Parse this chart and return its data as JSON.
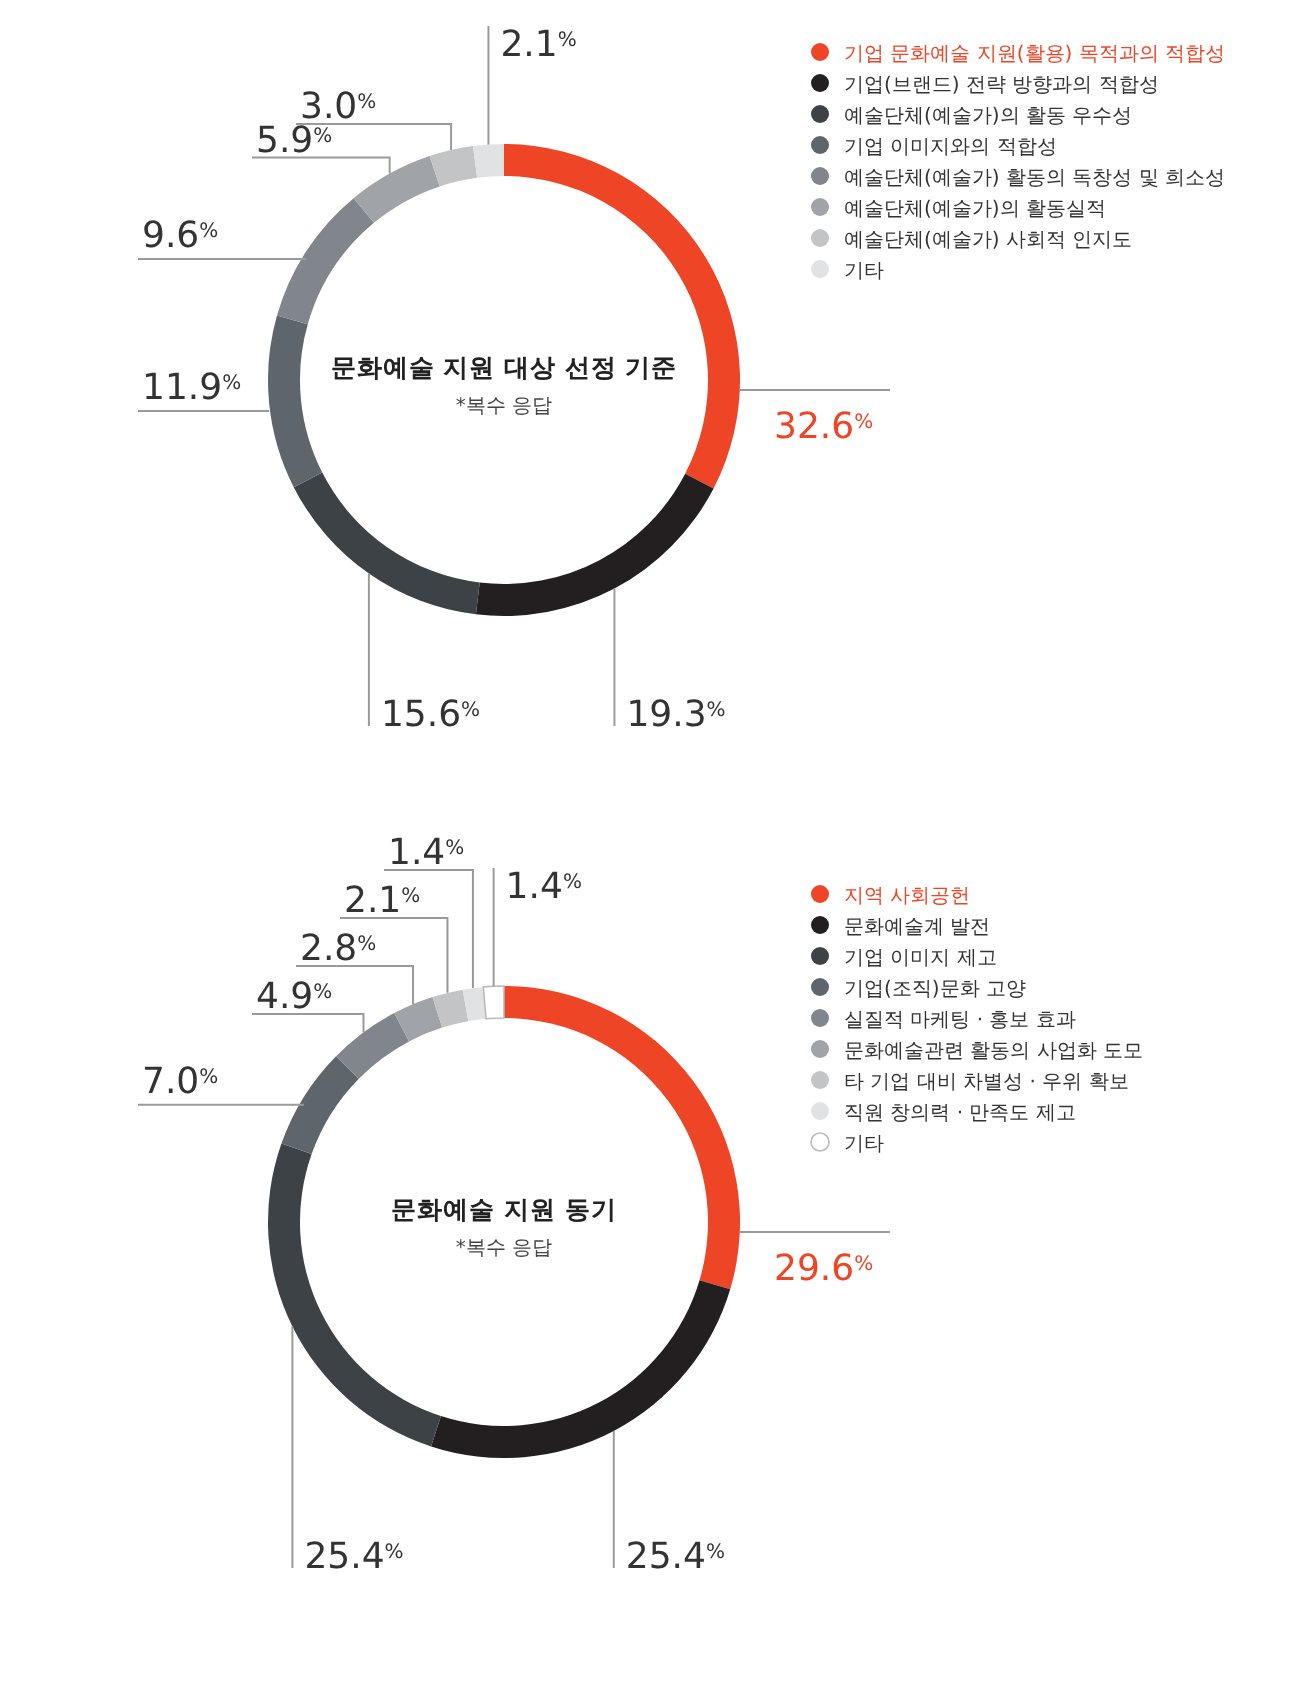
{
  "chart_data": [
    {
      "type": "donut",
      "title": "문화예술 지원 대상 선정 기준",
      "subtitle": "*복수 응답",
      "categories": [
        "기업 문화예술 지원(활용) 목적과의 적합성",
        "기업(브랜드) 전략 방향과의 적합성",
        "예술단체(예술가)의 활동 우수성",
        "기업 이미지와의 적합성",
        "예술단체(예술가) 활동의 독창성 및 희소성",
        "예술단체(예술가)의 활동실적",
        "예술단체(예술가) 사회적 인지도",
        "기타"
      ],
      "values": [
        32.6,
        19.3,
        15.6,
        11.9,
        9.6,
        5.9,
        3.0,
        2.1
      ],
      "value_labels": [
        "32.6$^{%}$",
        "19.3$^{%}$",
        "15.6$^{%}$",
        "11.9$^{%}$",
        "9.6$^{%}$",
        "5.9$^{%}$",
        "3.0$^{%}$",
        "2.1$^{%}$"
      ],
      "colors": [
        "#ee4526",
        "#231f20",
        "#3d4247",
        "#5f666b",
        "#80868b",
        "#a0a4a8",
        "#c2c4c6",
        "#e1e2e3"
      ],
      "legend": "right"
    },
    {
      "type": "donut",
      "title": "문화예술 지원 동기",
      "subtitle": "*복수 응답",
      "categories": [
        "지역 사회공헌",
        "문화예술계 발전",
        "기업 이미지 제고",
        "기업(조직)문화 고양",
        "실질적 마케팅 · 홍보 효과",
        "문화예술관련 활동의 사업화 도모",
        "타 기업 대비 차별성 · 우위 확보",
        "직원 창의력 · 만족도 제고",
        "기타"
      ],
      "values": [
        29.6,
        25.4,
        25.4,
        7.0,
        4.9,
        2.8,
        2.1,
        1.4,
        1.4
      ],
      "value_labels": [
        "29.6$^{%}$",
        "25.4$^{%}$",
        "25.4$^{%}$",
        "7.0$^{%}$",
        "4.9$^{%}$",
        "2.8$^{%}$",
        "2.1$^{%}$",
        "1.4$^{%}$",
        "1.4$^{%}$"
      ],
      "colors": [
        "#ee4526",
        "#231f20",
        "#3d4247",
        "#5f666b",
        "#80868b",
        "#a0a4a8",
        "#c2c4c6",
        "#e1e2e3",
        "#ffffff"
      ],
      "legend": "right"
    }
  ]
}
